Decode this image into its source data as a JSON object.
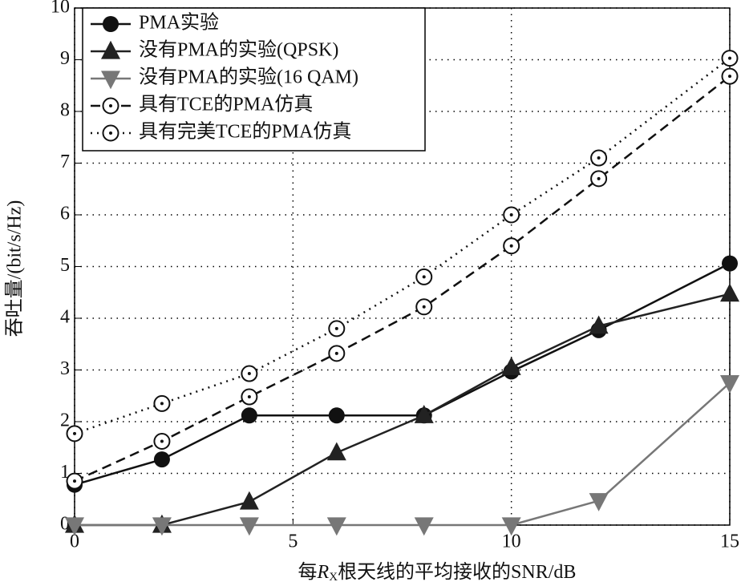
{
  "chart_data": {
    "type": "line",
    "xlabel": [
      "每",
      "R",
      "X",
      "根天线的平均接收的SNR/dB"
    ],
    "ylabel": "吞吐量/(bit/s/Hz)",
    "x": [
      0,
      2,
      4,
      6,
      8,
      10,
      12,
      15
    ],
    "xlim": [
      0,
      15
    ],
    "xticks": [
      0,
      5,
      10,
      15
    ],
    "ylim": [
      0,
      10
    ],
    "yticks": [
      0,
      1,
      2,
      3,
      4,
      5,
      6,
      7,
      8,
      9,
      10
    ],
    "grid": true,
    "legend": "upper left",
    "series": [
      {
        "name": "PMA实验",
        "color": "#111111",
        "line": "solid",
        "marker": "circle",
        "values": [
          0.78,
          1.27,
          2.12,
          2.12,
          2.12,
          2.97,
          3.77,
          5.06
        ]
      },
      {
        "name": "没有PMA的实验(QPSK)",
        "color": "#222222",
        "line": "solid",
        "marker": "triangle",
        "values": [
          0,
          0,
          0.45,
          1.4,
          2.12,
          3.05,
          3.85,
          4.47
        ]
      },
      {
        "name": "没有PMA的实验(16 QAM)",
        "color": "#777777",
        "line": "solid",
        "marker": "triangle-down",
        "values": [
          0,
          0,
          0,
          0,
          0,
          0,
          0.47,
          2.75
        ]
      },
      {
        "name": "具有TCE的PMA仿真",
        "color": "#111111",
        "line": "dashed",
        "marker": "open-circle",
        "values": [
          0.85,
          1.62,
          2.48,
          3.32,
          4.22,
          5.4,
          6.7,
          8.68
        ]
      },
      {
        "name": "具有完美TCE的PMA仿真",
        "color": "#111111",
        "line": "dotted",
        "marker": "open-circle",
        "values": [
          1.77,
          2.35,
          2.93,
          3.8,
          4.8,
          6.0,
          7.1,
          9.03
        ]
      }
    ]
  }
}
